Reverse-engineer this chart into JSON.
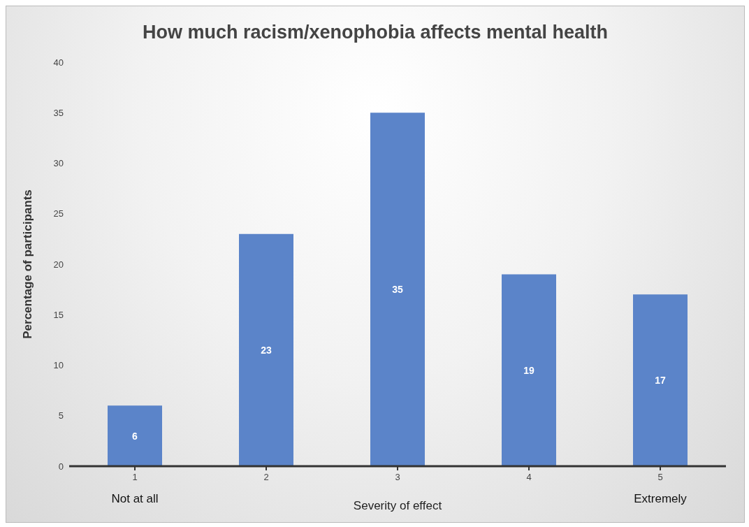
{
  "chart_data": {
    "type": "bar",
    "title": "How much racism/xenophobia affects mental health",
    "xlabel": "Severity of effect",
    "ylabel": "Percentage of participants",
    "categories": [
      "1",
      "2",
      "3",
      "4",
      "5"
    ],
    "values": [
      6,
      23,
      35,
      19,
      17
    ],
    "color": "#5b84c9",
    "ylim": [
      0,
      40
    ],
    "yticks": [
      0,
      5,
      10,
      15,
      20,
      25,
      30,
      35,
      40
    ],
    "grid": false,
    "legend": false,
    "data_labels": true,
    "annotations": [
      "Not at all",
      "Extremely"
    ]
  }
}
